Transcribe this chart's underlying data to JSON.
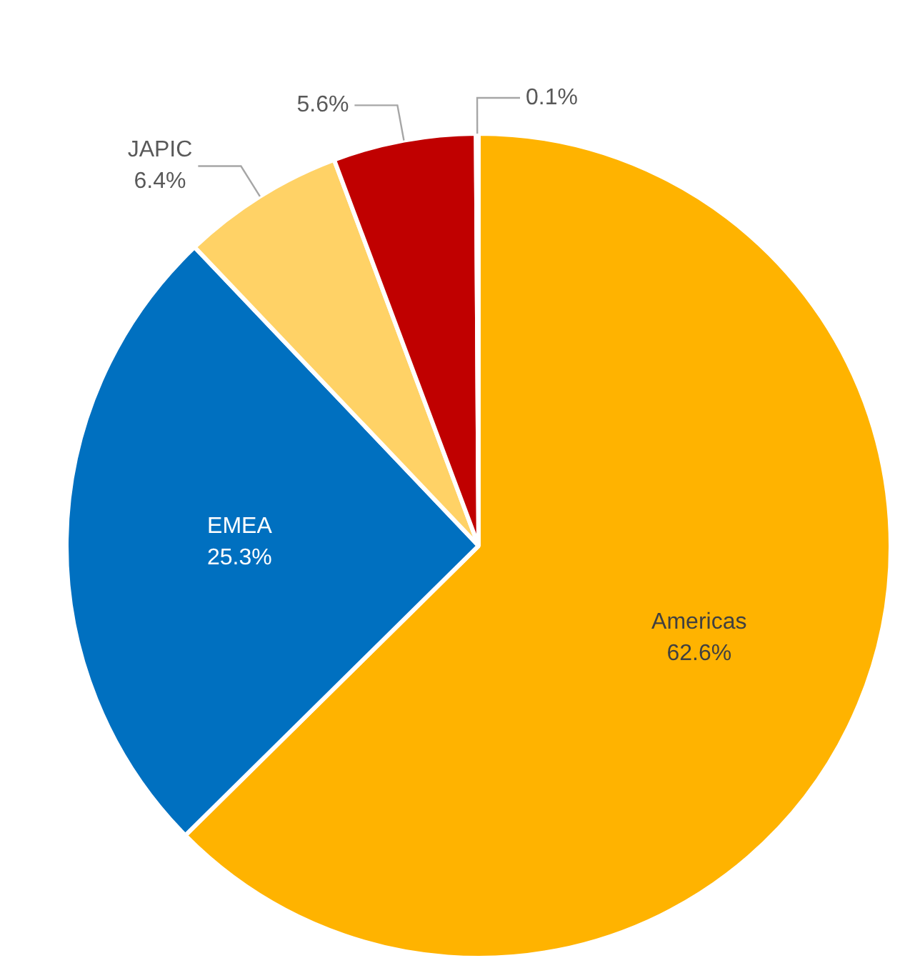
{
  "chart_data": {
    "type": "pie",
    "categories": [
      "Americas",
      "EMEA",
      "JAPIC",
      null,
      null
    ],
    "values": [
      62.6,
      25.3,
      6.4,
      5.6,
      0.1
    ],
    "value_labels": [
      "62.6%",
      "25.3%",
      "6.4%",
      "5.6%",
      "0.1%"
    ],
    "colors": [
      "#ffb300",
      "#0070c0",
      "#ffd266",
      "#c00000",
      "#a5a5a5"
    ],
    "legend": false
  }
}
